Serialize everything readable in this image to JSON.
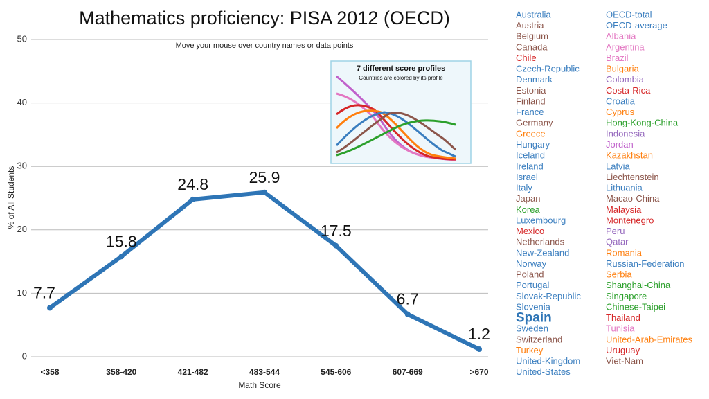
{
  "chart_data": {
    "type": "line",
    "title": "Mathematics proficiency: PISA 2012 (OECD)",
    "subtitle": "Move your mouse over country names or data points",
    "x_label": "Math Score",
    "y_label": "% of All Students",
    "categories": [
      "<358",
      "358-420",
      "421-482",
      "483-544",
      "545-606",
      "607-669",
      ">670"
    ],
    "values": [
      7.7,
      15.8,
      24.8,
      25.9,
      17.5,
      6.7,
      1.2
    ],
    "color": "#2e75b6",
    "ylim": [
      0,
      50
    ],
    "yticks": [
      0,
      10,
      20,
      30,
      40,
      50
    ],
    "grid": true,
    "inset": {
      "title": "7 different score profiles",
      "subtitle": "Countries are colored by its profile"
    },
    "country_columns": [
      [
        {
          "name": "Australia",
          "color": "#3a7ebf"
        },
        {
          "name": "Austria",
          "color": "#8c564b"
        },
        {
          "name": "Belgium",
          "color": "#8c564b"
        },
        {
          "name": "Canada",
          "color": "#8c564b"
        },
        {
          "name": "Chile",
          "color": "#d62728"
        },
        {
          "name": "Czech-Republic",
          "color": "#3a7ebf"
        },
        {
          "name": "Denmark",
          "color": "#3a7ebf"
        },
        {
          "name": "Estonia",
          "color": "#8c564b"
        },
        {
          "name": "Finland",
          "color": "#8c564b"
        },
        {
          "name": "France",
          "color": "#3a7ebf"
        },
        {
          "name": "Germany",
          "color": "#8c564b"
        },
        {
          "name": "Greece",
          "color": "#ff7f0e"
        },
        {
          "name": "Hungary",
          "color": "#3a7ebf"
        },
        {
          "name": "Iceland",
          "color": "#3a7ebf"
        },
        {
          "name": "Ireland",
          "color": "#3a7ebf"
        },
        {
          "name": "Israel",
          "color": "#3a7ebf"
        },
        {
          "name": "Italy",
          "color": "#3a7ebf"
        },
        {
          "name": "Japan",
          "color": "#8c564b"
        },
        {
          "name": "Korea",
          "color": "#2ca02c"
        },
        {
          "name": "Luxembourg",
          "color": "#3a7ebf"
        },
        {
          "name": "Mexico",
          "color": "#d62728"
        },
        {
          "name": "Netherlands",
          "color": "#8c564b"
        },
        {
          "name": "New-Zealand",
          "color": "#3a7ebf"
        },
        {
          "name": "Norway",
          "color": "#3a7ebf"
        },
        {
          "name": "Poland",
          "color": "#8c564b"
        },
        {
          "name": "Portugal",
          "color": "#3a7ebf"
        },
        {
          "name": "Slovak-Republic",
          "color": "#3a7ebf"
        },
        {
          "name": "Slovenia",
          "color": "#3a7ebf"
        },
        {
          "name": "Spain",
          "color": "#2e75b6",
          "highlight": true
        },
        {
          "name": "Sweden",
          "color": "#3a7ebf"
        },
        {
          "name": "Switzerland",
          "color": "#8c564b"
        },
        {
          "name": "Turkey",
          "color": "#ff7f0e"
        },
        {
          "name": "United-Kingdom",
          "color": "#3a7ebf"
        },
        {
          "name": "United-States",
          "color": "#3a7ebf"
        }
      ],
      [
        {
          "name": "OECD-total",
          "color": "#3a7ebf"
        },
        {
          "name": "OECD-average",
          "color": "#3a7ebf"
        },
        {
          "name": "Albania",
          "color": "#e377c2"
        },
        {
          "name": "Argentina",
          "color": "#e377c2"
        },
        {
          "name": "Brazil",
          "color": "#e377c2"
        },
        {
          "name": "Bulgaria",
          "color": "#ff7f0e"
        },
        {
          "name": "Colombia",
          "color": "#9467bd"
        },
        {
          "name": "Costa-Rica",
          "color": "#d62728"
        },
        {
          "name": "Croatia",
          "color": "#3a7ebf"
        },
        {
          "name": "Cyprus",
          "color": "#ff7f0e"
        },
        {
          "name": "Hong-Kong-China",
          "color": "#2ca02c"
        },
        {
          "name": "Indonesia",
          "color": "#9467bd"
        },
        {
          "name": "Jordan",
          "color": "#c061cb"
        },
        {
          "name": "Kazakhstan",
          "color": "#ff7f0e"
        },
        {
          "name": "Latvia",
          "color": "#3a7ebf"
        },
        {
          "name": "Liechtenstein",
          "color": "#8c564b"
        },
        {
          "name": "Lithuania",
          "color": "#3a7ebf"
        },
        {
          "name": "Macao-China",
          "color": "#8c564b"
        },
        {
          "name": "Malaysia",
          "color": "#d62728"
        },
        {
          "name": "Montenegro",
          "color": "#d62728"
        },
        {
          "name": "Peru",
          "color": "#9467bd"
        },
        {
          "name": "Qatar",
          "color": "#9467bd"
        },
        {
          "name": "Romania",
          "color": "#ff7f0e"
        },
        {
          "name": "Russian-Federation",
          "color": "#3a7ebf"
        },
        {
          "name": "Serbia",
          "color": "#ff7f0e"
        },
        {
          "name": "Shanghai-China",
          "color": "#2ca02c"
        },
        {
          "name": "Singapore",
          "color": "#2ca02c"
        },
        {
          "name": "Chinese-Taipei",
          "color": "#2ca02c"
        },
        {
          "name": "Thailand",
          "color": "#d62728"
        },
        {
          "name": "Tunisia",
          "color": "#e377c2"
        },
        {
          "name": "United-Arab-Emirates",
          "color": "#ff7f0e"
        },
        {
          "name": "Uruguay",
          "color": "#d62728"
        },
        {
          "name": "Viet-Nam",
          "color": "#8c564b"
        }
      ]
    ]
  }
}
